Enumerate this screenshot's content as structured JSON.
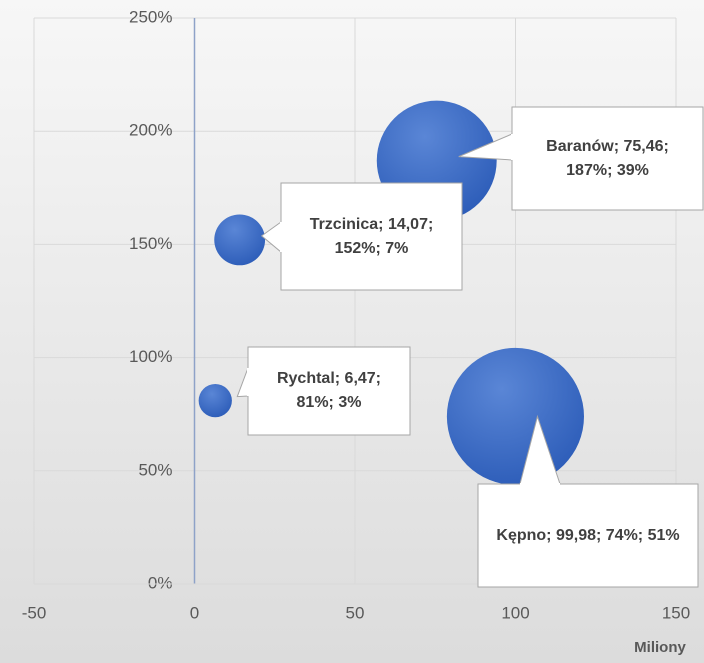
{
  "chart_data": {
    "type": "bubble",
    "x": [
      14.07,
      75.46,
      6.47,
      99.98
    ],
    "values": [
      152,
      187,
      81,
      74
    ],
    "sizes": [
      7,
      39,
      3,
      51
    ],
    "value_labels": [
      "Trzcinica; 14,07; 152%; 7%",
      "Baranów; 75,46; 187%; 39%",
      "Rychtal; 6,47; 81%; 3%",
      "Kępno; 99,98; 74%; 51%"
    ],
    "color": "#4472c4",
    "xlim": [
      -50,
      150
    ],
    "xticks": [
      -50,
      0,
      50,
      100,
      150
    ],
    "ylim": [
      0,
      250
    ],
    "yticks": [
      {
        "value": 0,
        "label": "0%"
      },
      {
        "value": 50,
        "label": "50%"
      },
      {
        "value": 100,
        "label": "100%"
      },
      {
        "value": 150,
        "label": "150%"
      },
      {
        "value": 200,
        "label": "200%"
      },
      {
        "value": 250,
        "label": "250%"
      }
    ],
    "x_label": "Miliony",
    "grid": true
  }
}
